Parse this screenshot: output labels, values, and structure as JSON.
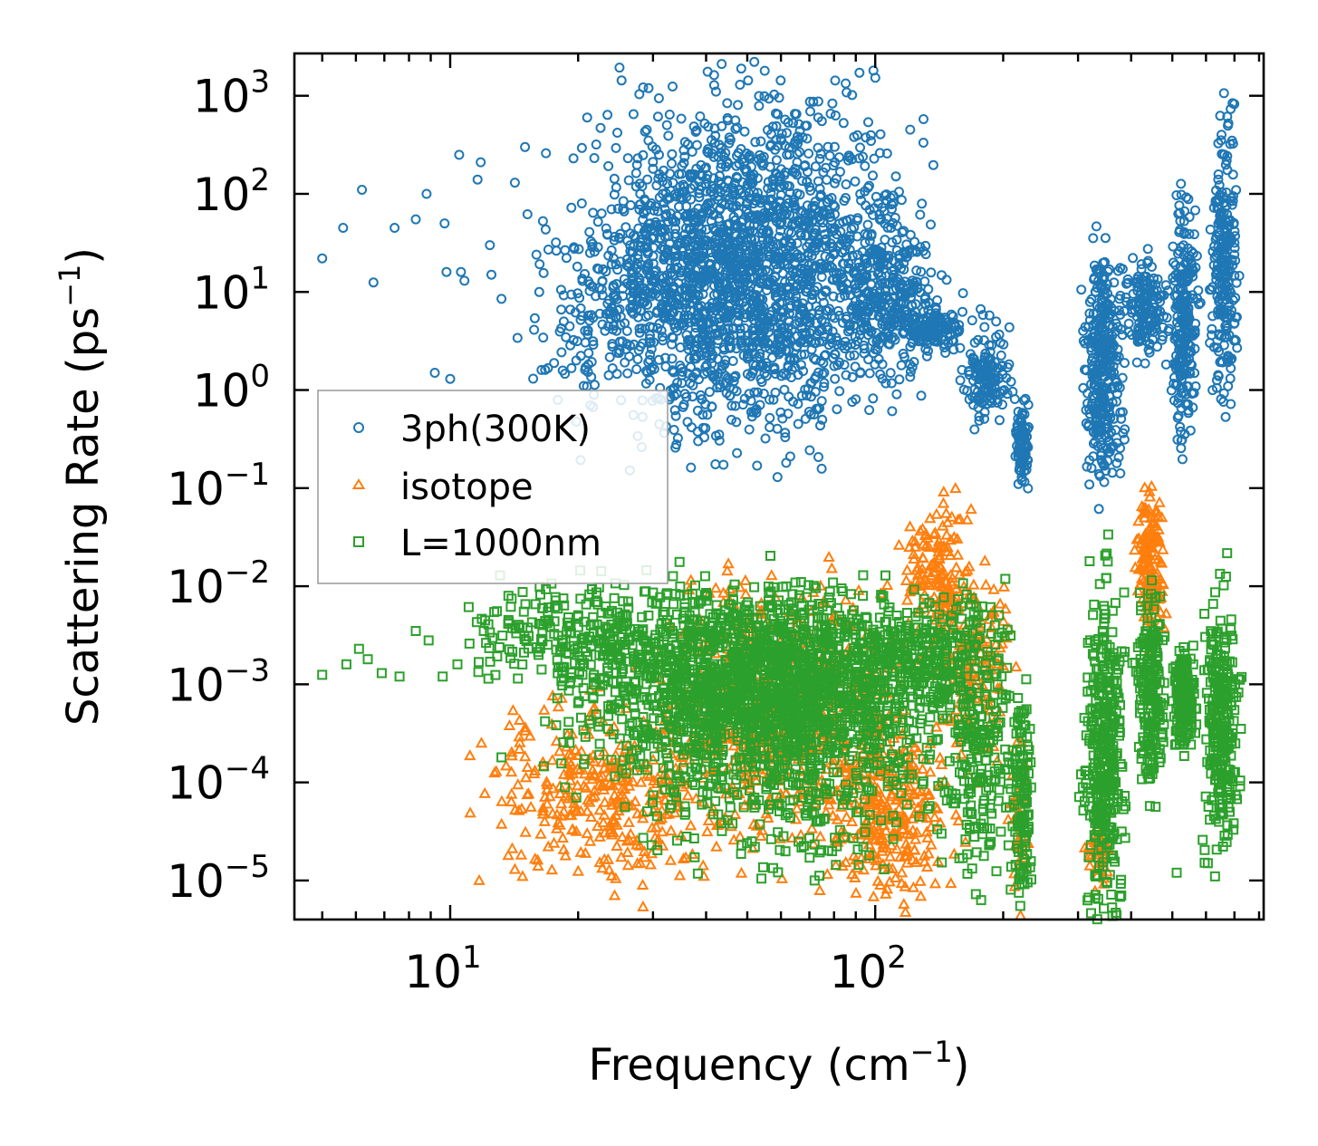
{
  "chart_data": {
    "type": "scatter",
    "xscale": "log",
    "yscale": "log",
    "xlim": [
      4.3,
      820
    ],
    "ylim": [
      4e-06,
      2700
    ],
    "xlabel": {
      "base": "Frequency (cm",
      "sup": "−1",
      "tail": ")"
    },
    "ylabel": {
      "base": "Scattering Rate (ps",
      "sup": "−1",
      "tail": ")"
    },
    "x_ticks": [
      {
        "value": 10,
        "base": "10",
        "exp": "1"
      },
      {
        "value": 100,
        "base": "10",
        "exp": "2"
      }
    ],
    "y_ticks": [
      {
        "value": 1000,
        "base": "10",
        "exp": "3"
      },
      {
        "value": 100,
        "base": "10",
        "exp": "2"
      },
      {
        "value": 10,
        "base": "10",
        "exp": "1"
      },
      {
        "value": 1,
        "base": "10",
        "exp": "0"
      },
      {
        "value": 0.1,
        "base": "10",
        "exp": "−1"
      },
      {
        "value": 0.01,
        "base": "10",
        "exp": "−2"
      },
      {
        "value": 0.001,
        "base": "10",
        "exp": "−3"
      },
      {
        "value": 0.0001,
        "base": "10",
        "exp": "−4"
      },
      {
        "value": 1e-05,
        "base": "10",
        "exp": "−5"
      }
    ],
    "legend_position": "center-left",
    "series": [
      {
        "name": "3ph(300K)",
        "marker": "circle",
        "color": "#1f77b4",
        "points": [
          [
            5.0,
            22
          ],
          [
            5.6,
            45
          ],
          [
            6.2,
            110
          ],
          [
            6.6,
            12.5
          ],
          [
            7.4,
            45
          ],
          [
            8.3,
            55
          ],
          [
            8.8,
            100
          ],
          [
            9.2,
            1.5
          ],
          [
            9.7,
            50
          ],
          [
            9.8,
            16
          ],
          [
            10.0,
            1.3
          ],
          [
            10.5,
            250
          ],
          [
            10.6,
            16
          ],
          [
            10.8,
            13
          ],
          [
            11.6,
            140
          ],
          [
            11.8,
            210
          ],
          [
            12.4,
            30
          ],
          [
            12.5,
            15
          ],
          [
            13.2,
            8.5
          ],
          [
            14.2,
            130
          ],
          [
            14.4,
            3.4
          ],
          [
            15.0,
            300
          ],
          [
            15.2,
            62
          ],
          [
            16.4,
            1.6
          ],
          [
            16.8,
            260
          ],
          [
            16.2,
            10
          ],
          [
            18.5,
            5
          ],
          [
            19.5,
            230
          ],
          [
            19.8,
            2
          ],
          [
            20.4,
            80
          ],
          [
            21.0,
            600
          ],
          [
            21.3,
            12
          ],
          [
            22.5,
            6
          ],
          [
            24,
            7
          ],
          [
            25.5,
            70
          ],
          [
            27,
            650
          ],
          [
            28,
            100
          ],
          [
            29,
            450
          ],
          [
            30,
            180
          ],
          [
            31,
            250
          ],
          [
            32,
            70
          ],
          [
            33,
            8
          ]
        ],
        "clusters": [
          {
            "x": [
              27,
              95
            ],
            "y": [
              1.0,
              350
            ],
            "n": 1900
          },
          {
            "x": [
              20,
              50
            ],
            "y": [
              1.5,
              60
            ],
            "n": 350
          },
          {
            "x": [
              88,
              130
            ],
            "y": [
              2.5,
              40
            ],
            "n": 260
          },
          {
            "x": [
              120,
              156
            ],
            "y": [
              3.0,
              6.0
            ],
            "n": 130
          },
          {
            "x": [
              165,
              200
            ],
            "y": [
              0.6,
              3.6
            ],
            "n": 140
          },
          {
            "x": [
              215,
              228
            ],
            "y": [
              0.15,
              0.6
            ],
            "n": 90
          },
          {
            "x": [
              320,
              372
            ],
            "y": [
              0.2,
              12
            ],
            "n": 340
          },
          {
            "x": [
              400,
              470
            ],
            "y": [
              2.5,
              16
            ],
            "n": 150
          },
          {
            "x": [
              510,
              560
            ],
            "y": [
              0.6,
              45
            ],
            "n": 240
          },
          {
            "x": [
              630,
              700
            ],
            "y": [
              1.8,
              180
            ],
            "n": 240
          }
        ]
      },
      {
        "name": "isotope",
        "marker": "triangle",
        "color": "#ff7f0e",
        "points": [
          [
            11.7,
            1e-05
          ],
          [
            13.7,
            1.8e-05
          ],
          [
            14.2,
            1.3e-05
          ],
          [
            14.8,
            1.1e-05
          ],
          [
            33,
            1.6e-05
          ],
          [
            28,
            1.5e-05
          ]
        ],
        "clusters": [
          {
            "x": [
              14.5,
              36
            ],
            "y": [
              1.5e-05,
              0.0004
            ],
            "n": 320
          },
          {
            "x": [
              35,
              105
            ],
            "y": [
              5e-05,
              0.005
            ],
            "n": 650
          },
          {
            "x": [
              85,
              135
            ],
            "y": [
              1e-05,
              0.0002
            ],
            "n": 260
          },
          {
            "x": [
              120,
              160
            ],
            "y": [
              0.003,
              0.05
            ],
            "n": 170
          },
          {
            "x": [
              150,
              200
            ],
            "y": [
              0.0003,
              0.008
            ],
            "n": 150
          },
          {
            "x": [
              320,
              350
            ],
            "y": [
              1e-05,
              3e-05
            ],
            "n": 40
          },
          {
            "x": [
              420,
              470
            ],
            "y": [
              0.004,
              0.06
            ],
            "n": 150
          },
          {
            "x": [
              210,
              228
            ],
            "y": [
              1e-05,
              0.0003
            ],
            "n": 40
          }
        ]
      },
      {
        "name": "L=1000nm",
        "marker": "square",
        "color": "#2ca02c",
        "points": [
          [
            5.0,
            0.00125
          ],
          [
            5.7,
            0.0016
          ],
          [
            6.1,
            0.0023
          ],
          [
            6.4,
            0.0018
          ],
          [
            6.9,
            0.0013
          ],
          [
            7.6,
            0.0012
          ],
          [
            8.3,
            0.0035
          ],
          [
            8.9,
            0.0028
          ],
          [
            9.6,
            0.0012
          ],
          [
            10.4,
            0.0016
          ],
          [
            11.1,
            0.0026
          ],
          [
            12.0,
            0.0035
          ],
          [
            13.2,
            0.00018
          ],
          [
            19.8,
            7e-05
          ],
          [
            36,
            2.8e-05
          ],
          [
            59,
            3.1e-05
          ],
          [
            72,
            1e-05
          ],
          [
            105,
            1.3e-05
          ],
          [
            180,
            4.2e-05
          ],
          [
            232,
            0.00016
          ],
          [
            302,
            7.1e-05
          ],
          [
            356,
            3.5e-05
          ],
          [
            447,
            0.0004
          ],
          [
            512,
            1.2e-05
          ],
          [
            606,
            1.5e-05
          ],
          [
            630,
            1.1e-05
          ]
        ],
        "clusters": [
          {
            "x": [
              13,
              30
            ],
            "y": [
              0.0012,
              0.008
            ],
            "n": 210
          },
          {
            "x": [
              27,
              105
            ],
            "y": [
              0.0002,
              0.005
            ],
            "n": 1900
          },
          {
            "x": [
              35,
              120
            ],
            "y": [
              2e-05,
              0.0003
            ],
            "n": 260
          },
          {
            "x": [
              100,
              160
            ],
            "y": [
              0.0007,
              0.005
            ],
            "n": 220
          },
          {
            "x": [
              150,
              200
            ],
            "y": [
              3e-05,
              0.003
            ],
            "n": 240
          },
          {
            "x": [
              215,
              230
            ],
            "y": [
              1e-05,
              0.0004
            ],
            "n": 110
          },
          {
            "x": [
              320,
              372
            ],
            "y": [
              1e-05,
              0.004
            ],
            "n": 380
          },
          {
            "x": [
              420,
              470
            ],
            "y": [
              0.0001,
              0.005
            ],
            "n": 200
          },
          {
            "x": [
              510,
              560
            ],
            "y": [
              0.0003,
              0.002
            ],
            "n": 170
          },
          {
            "x": [
              610,
              700
            ],
            "y": [
              5e-05,
              0.004
            ],
            "n": 260
          }
        ]
      }
    ]
  }
}
